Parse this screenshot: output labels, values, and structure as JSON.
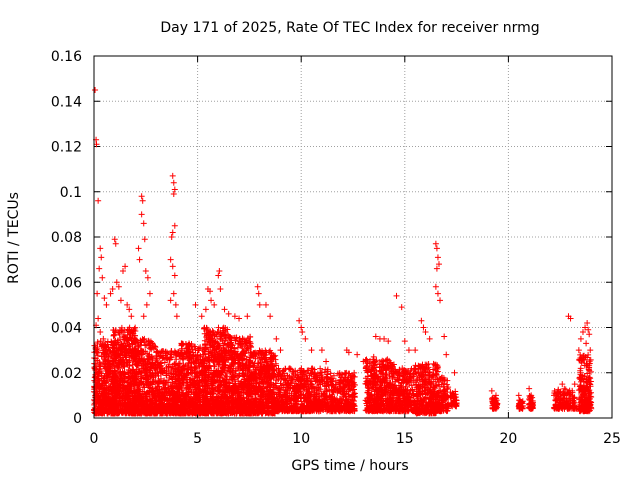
{
  "chart_data": {
    "type": "scatter",
    "title": "Day 171 of 2025, Rate Of TEC Index for receiver nrmg",
    "xlabel": "GPS time / hours",
    "ylabel": "ROTI / TECUs",
    "xlim": [
      0,
      25
    ],
    "ylim": [
      0,
      0.16
    ],
    "xticks": [
      0,
      5,
      10,
      15,
      20,
      25
    ],
    "yticks": [
      0,
      0.02,
      0.04,
      0.06,
      0.08,
      0.1,
      0.12,
      0.14,
      0.16
    ],
    "xtick_labels": [
      "0",
      "5",
      "10",
      "15",
      "20",
      "25"
    ],
    "ytick_labels": [
      "0",
      "0.02",
      "0.04",
      "0.06",
      "0.08",
      "0.1",
      "0.12",
      "0.14",
      "0.16"
    ],
    "grid": true,
    "marker": "+",
    "color": "#ff0000",
    "series": [
      {
        "name": "ROTI",
        "points": [
          [
            0.05,
            0.145
          ],
          [
            0.1,
            0.123
          ],
          [
            0.12,
            0.121
          ],
          [
            0.2,
            0.096
          ],
          [
            0.3,
            0.075
          ],
          [
            0.35,
            0.071
          ],
          [
            0.25,
            0.066
          ],
          [
            0.4,
            0.062
          ],
          [
            0.15,
            0.055
          ],
          [
            0.5,
            0.053
          ],
          [
            0.6,
            0.05
          ],
          [
            0.2,
            0.044
          ],
          [
            0.1,
            0.041
          ],
          [
            0.3,
            0.038
          ],
          [
            0.45,
            0.035
          ],
          [
            1.0,
            0.079
          ],
          [
            1.05,
            0.077
          ],
          [
            1.1,
            0.06
          ],
          [
            1.2,
            0.058
          ],
          [
            1.3,
            0.052
          ],
          [
            1.4,
            0.065
          ],
          [
            1.5,
            0.067
          ],
          [
            1.6,
            0.05
          ],
          [
            0.9,
            0.057
          ],
          [
            0.8,
            0.055
          ],
          [
            1.7,
            0.048
          ],
          [
            1.8,
            0.045
          ],
          [
            2.3,
            0.098
          ],
          [
            2.35,
            0.096
          ],
          [
            2.3,
            0.09
          ],
          [
            2.4,
            0.086
          ],
          [
            2.45,
            0.079
          ],
          [
            2.2,
            0.07
          ],
          [
            2.5,
            0.065
          ],
          [
            2.6,
            0.062
          ],
          [
            2.15,
            0.075
          ],
          [
            2.55,
            0.05
          ],
          [
            2.7,
            0.055
          ],
          [
            2.4,
            0.045
          ],
          [
            3.8,
            0.107
          ],
          [
            3.85,
            0.104
          ],
          [
            3.9,
            0.101
          ],
          [
            3.85,
            0.099
          ],
          [
            3.9,
            0.085
          ],
          [
            3.8,
            0.082
          ],
          [
            3.75,
            0.08
          ],
          [
            3.7,
            0.07
          ],
          [
            3.8,
            0.067
          ],
          [
            3.9,
            0.063
          ],
          [
            3.85,
            0.055
          ],
          [
            3.95,
            0.05
          ],
          [
            4.0,
            0.045
          ],
          [
            3.7,
            0.052
          ],
          [
            5.5,
            0.057
          ],
          [
            5.6,
            0.056
          ],
          [
            5.65,
            0.052
          ],
          [
            4.9,
            0.05
          ],
          [
            5.2,
            0.045
          ],
          [
            5.4,
            0.048
          ],
          [
            5.8,
            0.05
          ],
          [
            6.0,
            0.063
          ],
          [
            6.05,
            0.065
          ],
          [
            6.1,
            0.057
          ],
          [
            6.3,
            0.048
          ],
          [
            6.5,
            0.046
          ],
          [
            6.8,
            0.045
          ],
          [
            7.0,
            0.044
          ],
          [
            7.9,
            0.058
          ],
          [
            7.95,
            0.055
          ],
          [
            8.0,
            0.05
          ],
          [
            8.3,
            0.05
          ],
          [
            8.5,
            0.045
          ],
          [
            7.4,
            0.045
          ],
          [
            8.8,
            0.035
          ],
          [
            9.0,
            0.03
          ],
          [
            9.9,
            0.043
          ],
          [
            10.0,
            0.04
          ],
          [
            10.05,
            0.038
          ],
          [
            10.2,
            0.035
          ],
          [
            10.5,
            0.03
          ],
          [
            11.0,
            0.03
          ],
          [
            11.2,
            0.025
          ],
          [
            12.2,
            0.03
          ],
          [
            12.3,
            0.029
          ],
          [
            12.7,
            0.028
          ],
          [
            13.0,
            0.025
          ],
          [
            13.5,
            0.027
          ],
          [
            13.6,
            0.036
          ],
          [
            13.8,
            0.035
          ],
          [
            14.0,
            0.035
          ],
          [
            14.2,
            0.034
          ],
          [
            14.6,
            0.054
          ],
          [
            14.85,
            0.049
          ],
          [
            15.0,
            0.034
          ],
          [
            15.2,
            0.03
          ],
          [
            15.5,
            0.03
          ],
          [
            15.8,
            0.043
          ],
          [
            15.9,
            0.04
          ],
          [
            16.0,
            0.038
          ],
          [
            16.2,
            0.035
          ],
          [
            16.5,
            0.077
          ],
          [
            16.55,
            0.075
          ],
          [
            16.6,
            0.071
          ],
          [
            16.65,
            0.068
          ],
          [
            16.55,
            0.066
          ],
          [
            16.5,
            0.058
          ],
          [
            16.6,
            0.055
          ],
          [
            16.7,
            0.052
          ],
          [
            16.9,
            0.036
          ],
          [
            17.0,
            0.028
          ],
          [
            17.4,
            0.02
          ],
          [
            19.2,
            0.012
          ],
          [
            19.3,
            0.008
          ],
          [
            19.35,
            0.006
          ],
          [
            19.4,
            0.01
          ],
          [
            20.5,
            0.01
          ],
          [
            20.55,
            0.005
          ],
          [
            20.6,
            0.007
          ],
          [
            21.0,
            0.013
          ],
          [
            21.1,
            0.01
          ],
          [
            21.15,
            0.005
          ],
          [
            22.2,
            0.01
          ],
          [
            22.4,
            0.012
          ],
          [
            22.6,
            0.015
          ],
          [
            22.9,
            0.045
          ],
          [
            23.0,
            0.044
          ],
          [
            23.2,
            0.015
          ],
          [
            23.4,
            0.03
          ],
          [
            23.5,
            0.035
          ],
          [
            23.6,
            0.038
          ],
          [
            23.7,
            0.04
          ],
          [
            23.8,
            0.042
          ],
          [
            23.85,
            0.039
          ],
          [
            23.9,
            0.037
          ],
          [
            23.75,
            0.033
          ],
          [
            23.95,
            0.03
          ]
        ],
        "dense_bands": [
          {
            "x": [
              0.0,
              1.0
            ],
            "y": [
              0.002,
              0.034
            ]
          },
          {
            "x": [
              0.9,
              2.0
            ],
            "y": [
              0.002,
              0.04
            ]
          },
          {
            "x": [
              1.9,
              3.0
            ],
            "y": [
              0.002,
              0.035
            ]
          },
          {
            "x": [
              3.0,
              4.2
            ],
            "y": [
              0.002,
              0.03
            ]
          },
          {
            "x": [
              4.2,
              5.4
            ],
            "y": [
              0.002,
              0.033
            ]
          },
          {
            "x": [
              5.3,
              6.5
            ],
            "y": [
              0.002,
              0.04
            ]
          },
          {
            "x": [
              6.5,
              7.6
            ],
            "y": [
              0.002,
              0.036
            ]
          },
          {
            "x": [
              7.5,
              8.8
            ],
            "y": [
              0.002,
              0.03
            ]
          },
          {
            "x": [
              8.8,
              10.0
            ],
            "y": [
              0.003,
              0.022
            ]
          },
          {
            "x": [
              10.0,
              11.3
            ],
            "y": [
              0.003,
              0.022
            ]
          },
          {
            "x": [
              11.3,
              12.6
            ],
            "y": [
              0.003,
              0.02
            ]
          },
          {
            "x": [
              13.1,
              14.5
            ],
            "y": [
              0.003,
              0.026
            ]
          },
          {
            "x": [
              14.5,
              15.5
            ],
            "y": [
              0.003,
              0.022
            ]
          },
          {
            "x": [
              15.5,
              16.6
            ],
            "y": [
              0.002,
              0.024
            ]
          },
          {
            "x": [
              16.6,
              17.1
            ],
            "y": [
              0.003,
              0.018
            ]
          },
          {
            "x": [
              17.2,
              17.5
            ],
            "y": [
              0.005,
              0.012
            ]
          },
          {
            "x": [
              19.2,
              19.5
            ],
            "y": [
              0.004,
              0.009
            ]
          },
          {
            "x": [
              20.5,
              20.7
            ],
            "y": [
              0.004,
              0.008
            ]
          },
          {
            "x": [
              21.0,
              21.2
            ],
            "y": [
              0.004,
              0.01
            ]
          },
          {
            "x": [
              22.2,
              23.3
            ],
            "y": [
              0.004,
              0.013
            ]
          },
          {
            "x": [
              23.4,
              24.0
            ],
            "y": [
              0.003,
              0.028
            ]
          }
        ]
      }
    ]
  }
}
